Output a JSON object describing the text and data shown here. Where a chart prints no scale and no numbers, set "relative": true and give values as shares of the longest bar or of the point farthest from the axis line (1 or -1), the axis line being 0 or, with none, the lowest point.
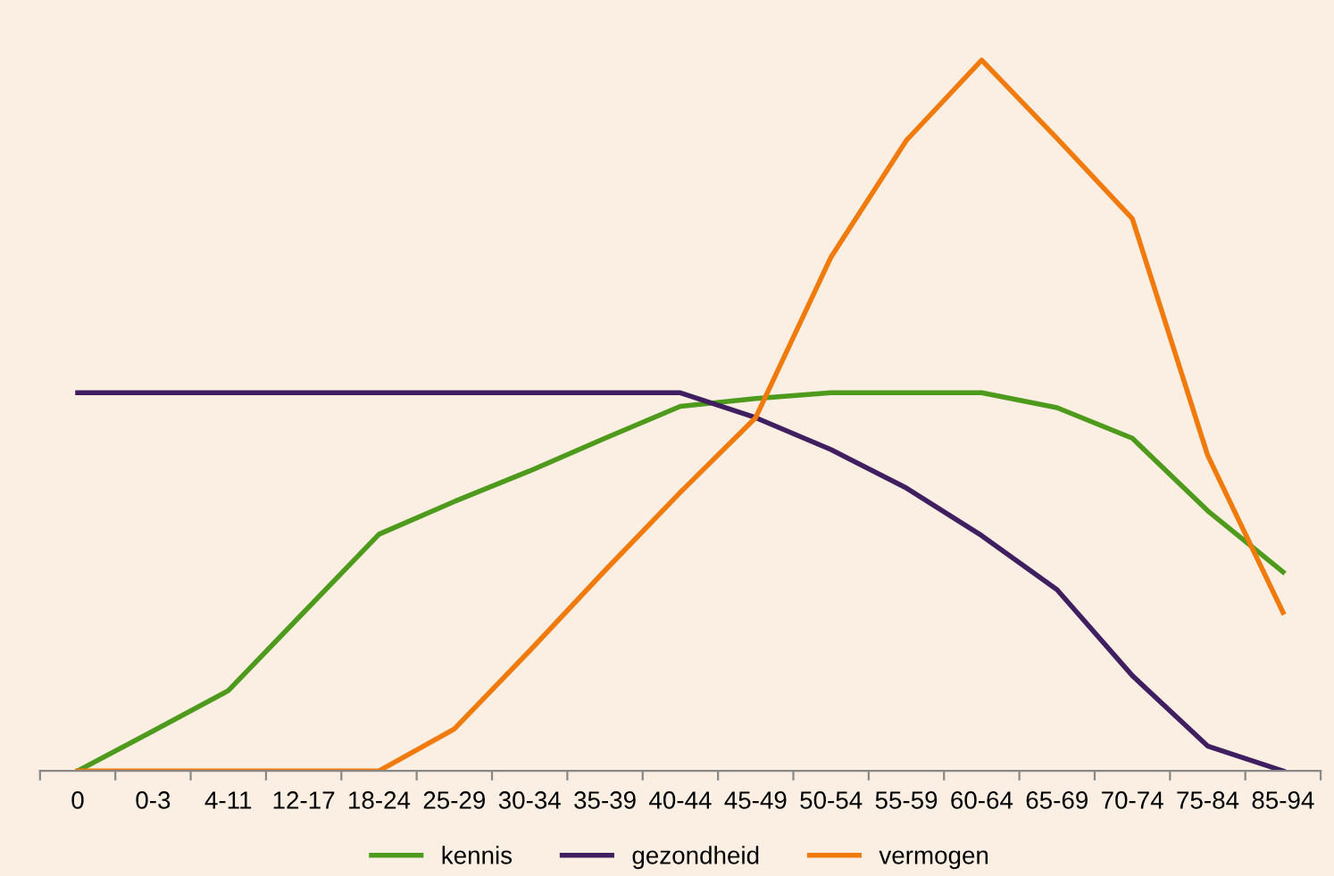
{
  "chart_data": {
    "type": "line",
    "relative": true,
    "legend": "bottom",
    "grid": false,
    "marker": "none",
    "line_style": "solid",
    "categories": [
      "0",
      "0-3",
      "4-11",
      "12-17",
      "18-24",
      "25-29",
      "30-34",
      "35-39",
      "40-44",
      "45-49",
      "50-54",
      "55-59",
      "60-64",
      "65-69",
      "70-74",
      "75-84",
      "85-94"
    ],
    "series": [
      {
        "name": "kennis",
        "color": "#4e9a1c",
        "values": [
          0,
          0.056,
          0.113,
          0.223,
          0.333,
          0.379,
          0.422,
          0.468,
          0.513,
          0.524,
          0.532,
          0.532,
          0.532,
          0.511,
          0.468,
          0.366,
          0.28
        ]
      },
      {
        "name": "gezondheid",
        "color": "#3f1f5f",
        "values": [
          0.532,
          0.532,
          0.532,
          0.532,
          0.532,
          0.532,
          0.532,
          0.532,
          0.532,
          0.497,
          0.452,
          0.398,
          0.331,
          0.255,
          0.134,
          0.035,
          0
        ]
      },
      {
        "name": "vermogen",
        "color": "#f07b0c",
        "values": [
          0,
          0,
          0,
          0,
          0,
          0.059,
          0.169,
          0.282,
          0.392,
          0.497,
          0.723,
          0.887,
          1,
          0.89,
          0.777,
          0.444,
          0.223
        ]
      }
    ]
  }
}
